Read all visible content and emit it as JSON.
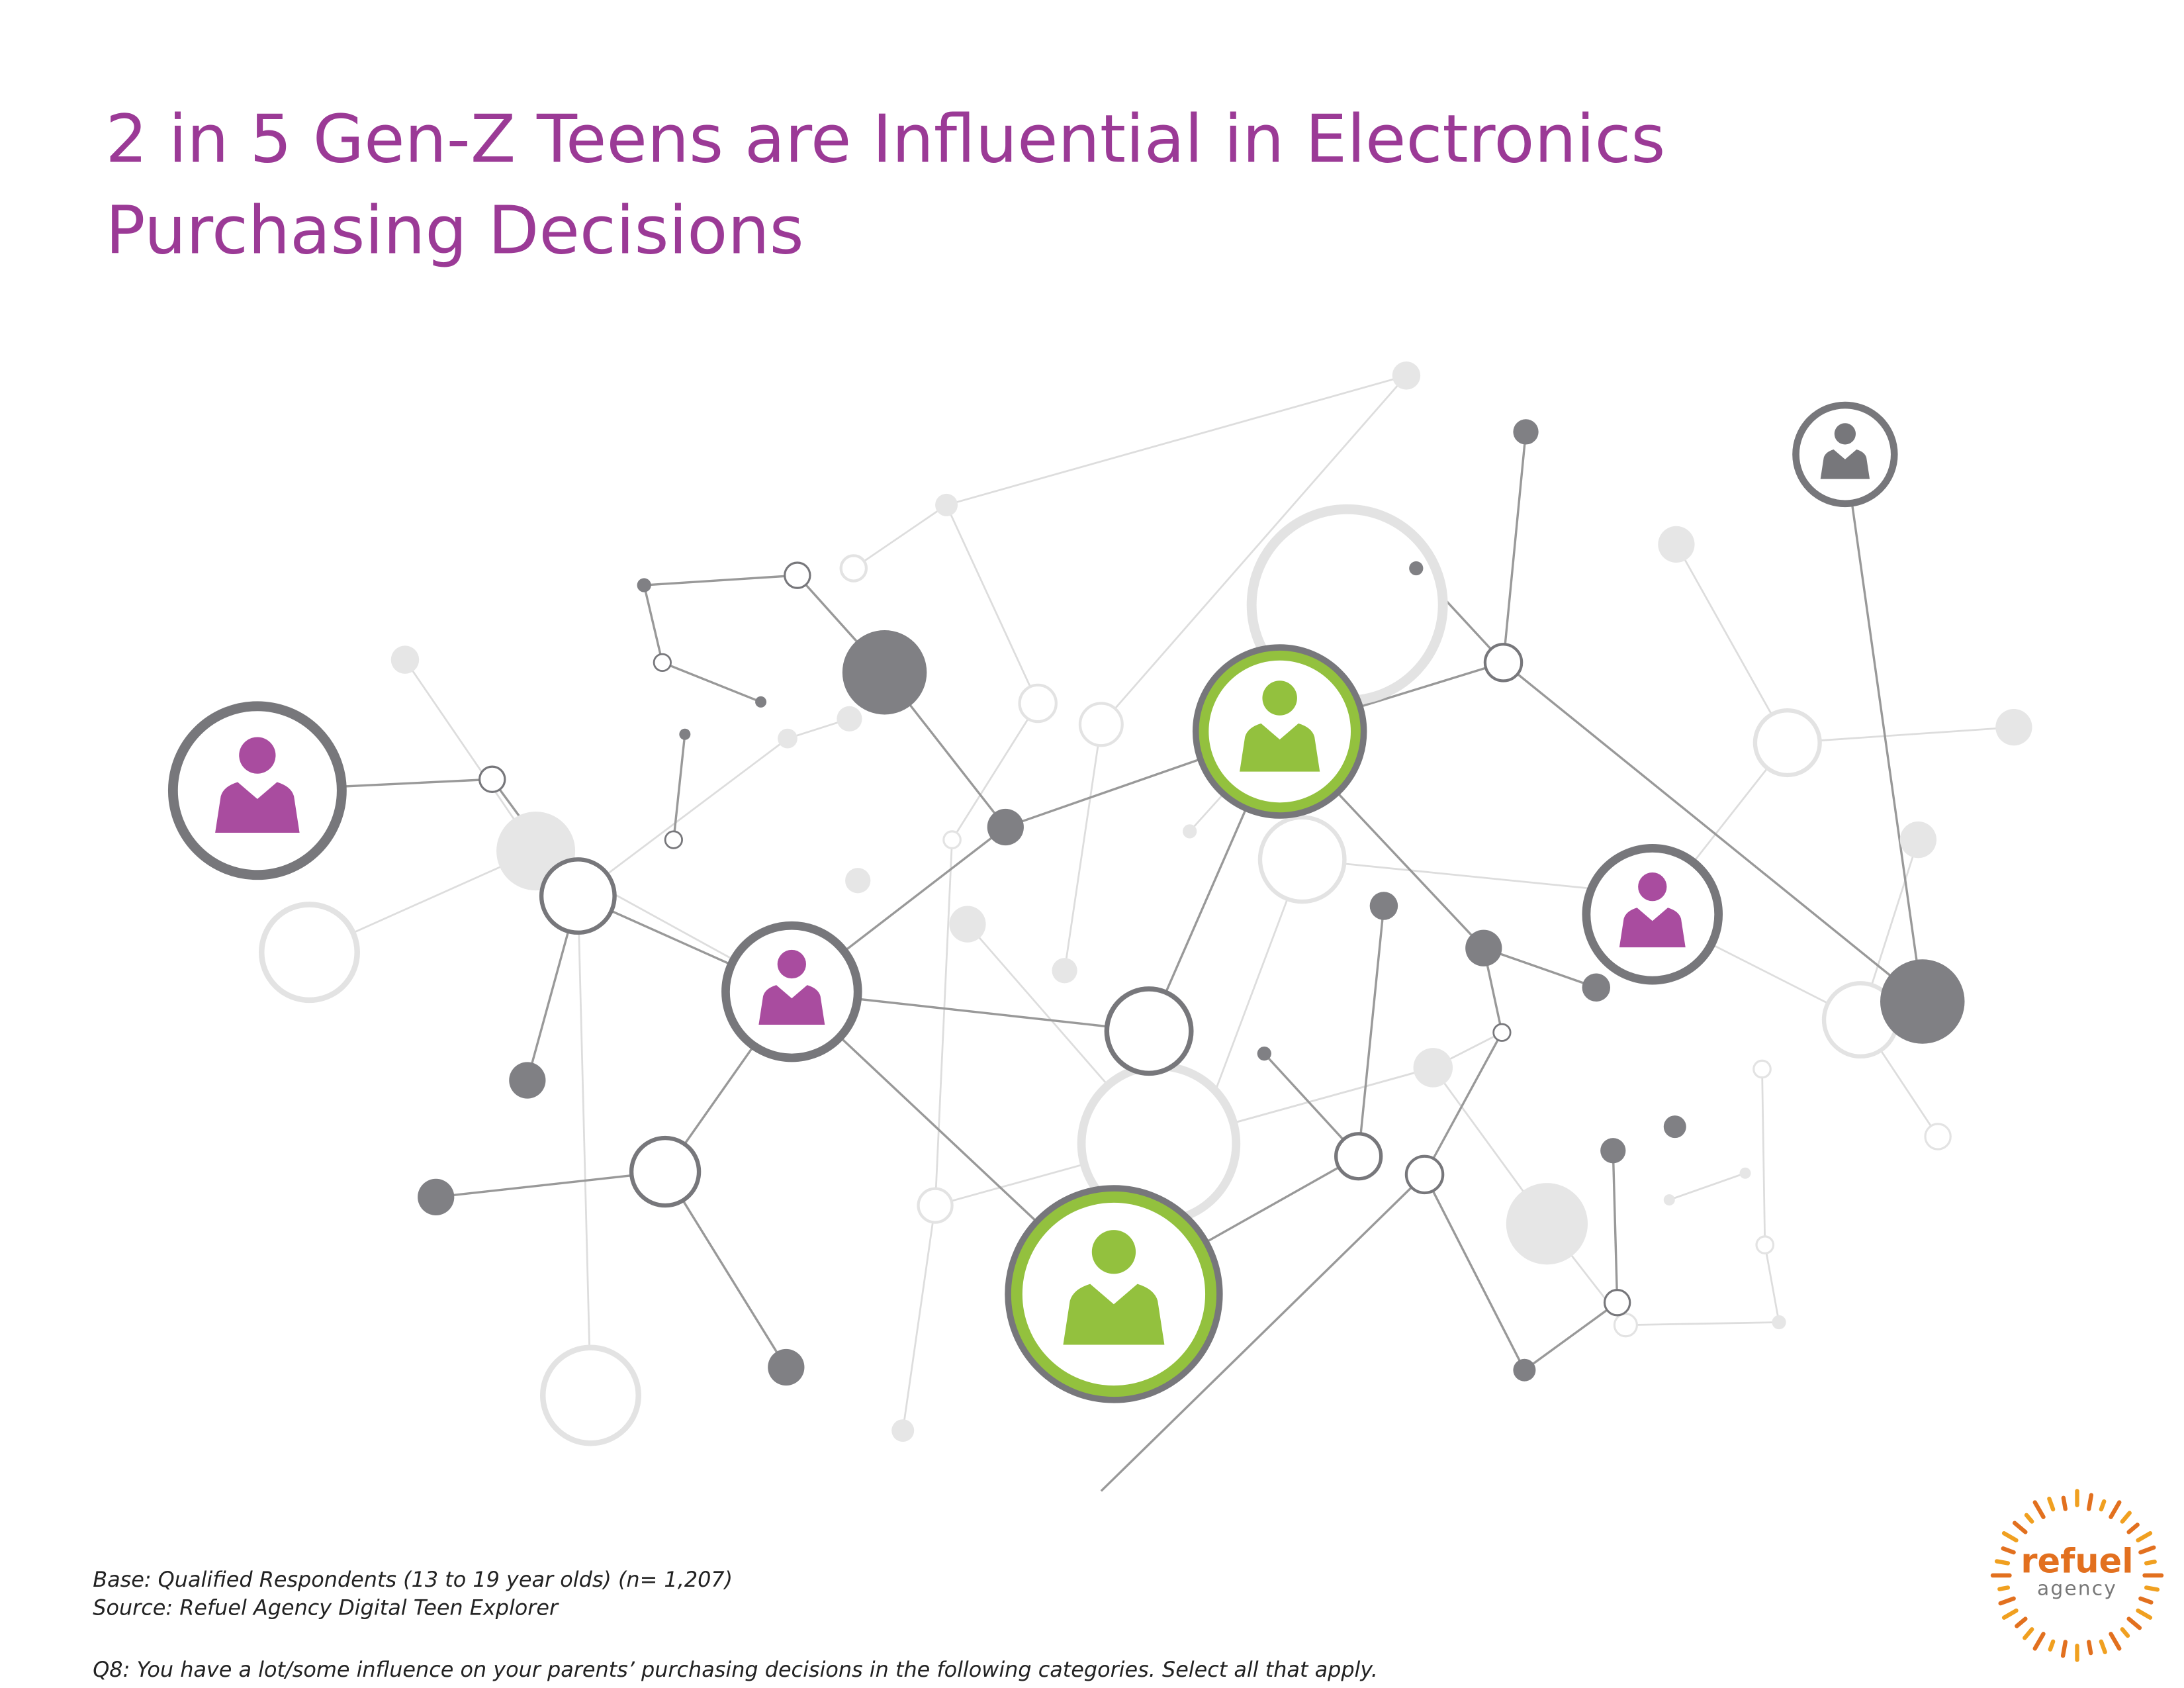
{
  "title_lines": [
    "2 in 5 Gen-Z Teens are Influential in Electronics",
    "Purchasing Decisions"
  ],
  "footnotes": {
    "base": "Base: Qualified Respondents (13 to 19 year olds)  (n= 1,207)",
    "source": "Source: Refuel Agency Digital Teen Explorer",
    "question": "Q8: You have a lot/some influence on your parents’ purchasing decisions in the following categories. Select all that apply."
  },
  "logo": {
    "name": "refuel",
    "subtitle": "agency"
  }
}
